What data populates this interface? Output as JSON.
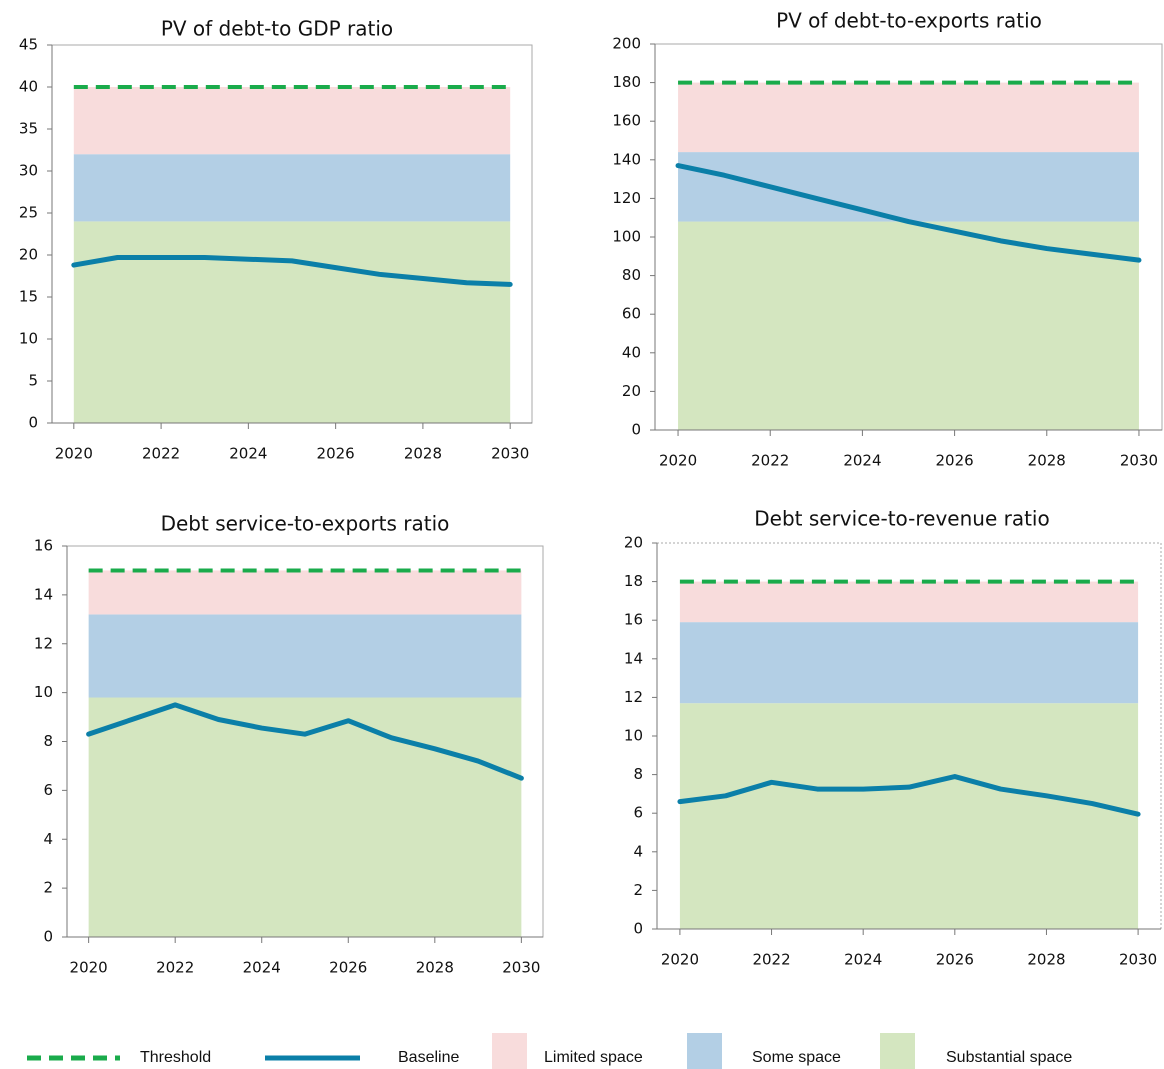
{
  "chart_data": [
    {
      "type": "line",
      "title": "PV of debt-to GDP ratio",
      "x": [
        2020,
        2021,
        2022,
        2023,
        2024,
        2025,
        2026,
        2027,
        2028,
        2029,
        2030
      ],
      "xlim": [
        2019.5,
        2030.5
      ],
      "xticks": [
        2020,
        2022,
        2024,
        2026,
        2028,
        2030
      ],
      "ylim": [
        0,
        45
      ],
      "yticks": [
        0,
        5,
        10,
        15,
        20,
        25,
        30,
        35,
        40,
        45
      ],
      "threshold": 40,
      "bands": [
        24,
        8,
        8
      ],
      "baseline": [
        18.8,
        19.7,
        19.7,
        19.7,
        19.5,
        19.3,
        18.5,
        17.7,
        17.2,
        16.7,
        16.5
      ]
    },
    {
      "type": "line",
      "title": "PV of debt-to-exports ratio",
      "x": [
        2020,
        2021,
        2022,
        2023,
        2024,
        2025,
        2026,
        2027,
        2028,
        2029,
        2030
      ],
      "xlim": [
        2019.5,
        2030.5
      ],
      "xticks": [
        2020,
        2022,
        2024,
        2026,
        2028,
        2030
      ],
      "ylim": [
        0,
        200
      ],
      "yticks": [
        0,
        20,
        40,
        60,
        80,
        100,
        120,
        140,
        160,
        180,
        200
      ],
      "threshold": 180,
      "bands": [
        108,
        36,
        36
      ],
      "baseline": [
        137,
        132,
        126,
        120,
        114,
        108,
        103,
        98,
        94,
        91,
        88
      ]
    },
    {
      "type": "line",
      "title": "Debt service-to-exports ratio",
      "x": [
        2020,
        2021,
        2022,
        2023,
        2024,
        2025,
        2026,
        2027,
        2028,
        2029,
        2030
      ],
      "xlim": [
        2019.5,
        2030.5
      ],
      "xticks": [
        2020,
        2022,
        2024,
        2026,
        2028,
        2030
      ],
      "ylim": [
        0,
        16
      ],
      "yticks": [
        0,
        2,
        4,
        6,
        8,
        10,
        12,
        14,
        16
      ],
      "threshold": 15,
      "bands": [
        9.8,
        3.4,
        1.8
      ],
      "baseline": [
        8.3,
        8.9,
        9.5,
        8.9,
        8.55,
        8.3,
        8.85,
        8.15,
        7.7,
        7.2,
        6.5
      ]
    },
    {
      "type": "line",
      "title": "Debt service-to-revenue ratio",
      "x": [
        2020,
        2021,
        2022,
        2023,
        2024,
        2025,
        2026,
        2027,
        2028,
        2029,
        2030
      ],
      "xlim": [
        2019.5,
        2030.5
      ],
      "xticks": [
        2020,
        2022,
        2024,
        2026,
        2028,
        2030
      ],
      "ylim": [
        0,
        20
      ],
      "yticks": [
        0,
        2,
        4,
        6,
        8,
        10,
        12,
        14,
        16,
        18,
        20
      ],
      "threshold": 18,
      "bands": [
        11.7,
        4.2,
        2.1
      ],
      "baseline": [
        6.6,
        6.9,
        7.6,
        7.25,
        7.25,
        7.35,
        7.9,
        7.25,
        6.9,
        6.5,
        5.95
      ]
    }
  ],
  "legend": [
    {
      "name": "Threshold",
      "color": "#1aab4b"
    },
    {
      "name": "Baseline",
      "color": "#0b7fa8"
    },
    {
      "name": "Limited space",
      "color": "#f8dcdc"
    },
    {
      "name": "Some space",
      "color": "#b3cfe5"
    },
    {
      "name": "Substantial space",
      "color": "#d4e6c0"
    }
  ]
}
